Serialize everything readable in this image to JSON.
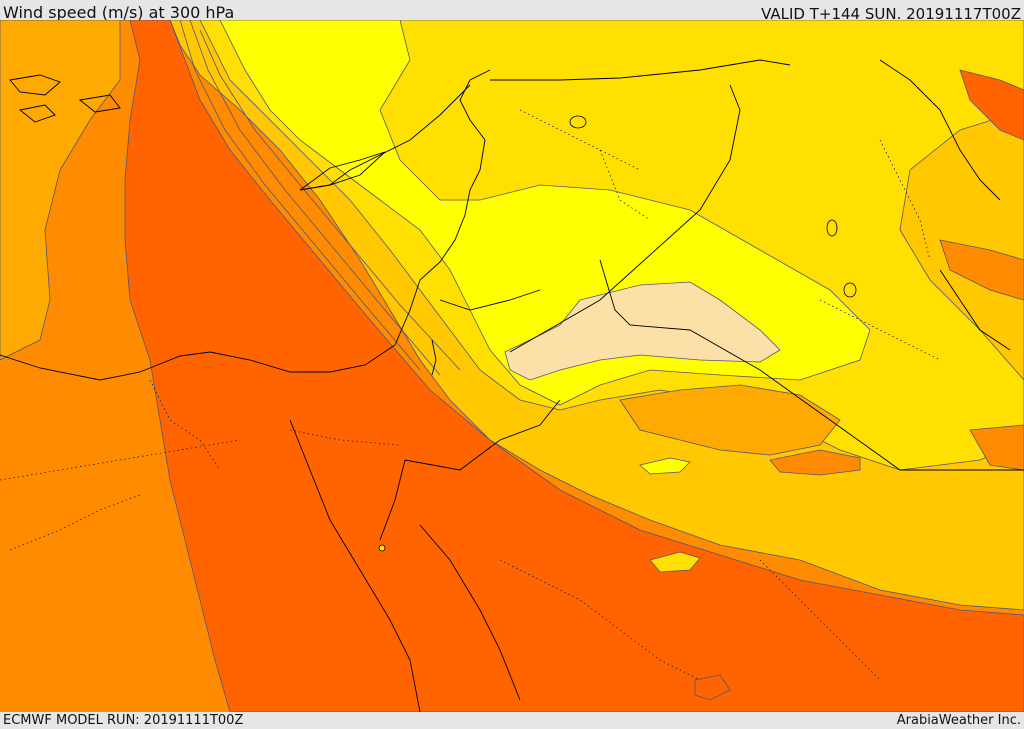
{
  "header": {
    "title": "Wind speed (m/s) at 300 hPa",
    "valid": "VALID T+144 SUN. 20191117T00Z"
  },
  "footer": {
    "model_run": "ECMWF MODEL RUN: 20191111T00Z",
    "credit": "ArabiaWeather Inc."
  },
  "map": {
    "field": "wind speed 300 hPa",
    "palette": {
      "very_light": "#fde0a8",
      "lightest": "#ffff00",
      "light_yellow": "#ffe000",
      "yellow_orange": "#ffc800",
      "amber": "#ffaa00",
      "orange": "#ff8c00",
      "dark_orange": "#ff6400"
    },
    "borders_color": "#000000",
    "contour_color": "#444466"
  }
}
